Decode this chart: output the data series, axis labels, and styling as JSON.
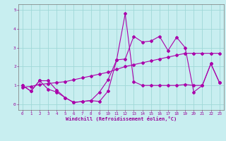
{
  "xlabel": "Windchill (Refroidissement éolien,°C)",
  "x": [
    0,
    1,
    2,
    3,
    4,
    5,
    6,
    7,
    8,
    9,
    10,
    11,
    12,
    13,
    14,
    15,
    16,
    17,
    18,
    19,
    20,
    21,
    22,
    23
  ],
  "line1": [
    1.0,
    0.7,
    1.25,
    1.25,
    0.75,
    0.35,
    0.1,
    0.15,
    0.2,
    0.15,
    0.7,
    2.35,
    4.8,
    1.2,
    1.0,
    1.0,
    1.0,
    1.0,
    1.0,
    1.05,
    1.0,
    1.0,
    2.15,
    1.15
  ],
  "line2": [
    1.0,
    0.7,
    1.25,
    0.8,
    0.65,
    0.35,
    0.1,
    0.15,
    0.2,
    0.65,
    1.3,
    2.35,
    2.4,
    3.6,
    3.3,
    3.35,
    3.6,
    2.85,
    3.55,
    3.0,
    0.65,
    1.0,
    2.15,
    1.15
  ],
  "line3": [
    0.9,
    0.95,
    1.05,
    1.1,
    1.15,
    1.2,
    1.3,
    1.4,
    1.5,
    1.6,
    1.7,
    1.85,
    2.0,
    2.1,
    2.2,
    2.3,
    2.4,
    2.5,
    2.6,
    2.7,
    2.7,
    2.7,
    2.7,
    2.7
  ],
  "line_color": "#aa00aa",
  "bg_color": "#c8eef0",
  "grid_color": "#a0d8d8",
  "ylim": [
    -0.3,
    5.3
  ],
  "xlim": [
    -0.5,
    23.5
  ],
  "yticks": [
    0,
    1,
    2,
    3,
    4,
    5
  ],
  "xticks": [
    0,
    1,
    2,
    3,
    4,
    5,
    6,
    7,
    8,
    9,
    10,
    11,
    12,
    13,
    14,
    15,
    16,
    17,
    18,
    19,
    20,
    21,
    22,
    23
  ],
  "tick_color": "#990099",
  "label_color": "#990099"
}
